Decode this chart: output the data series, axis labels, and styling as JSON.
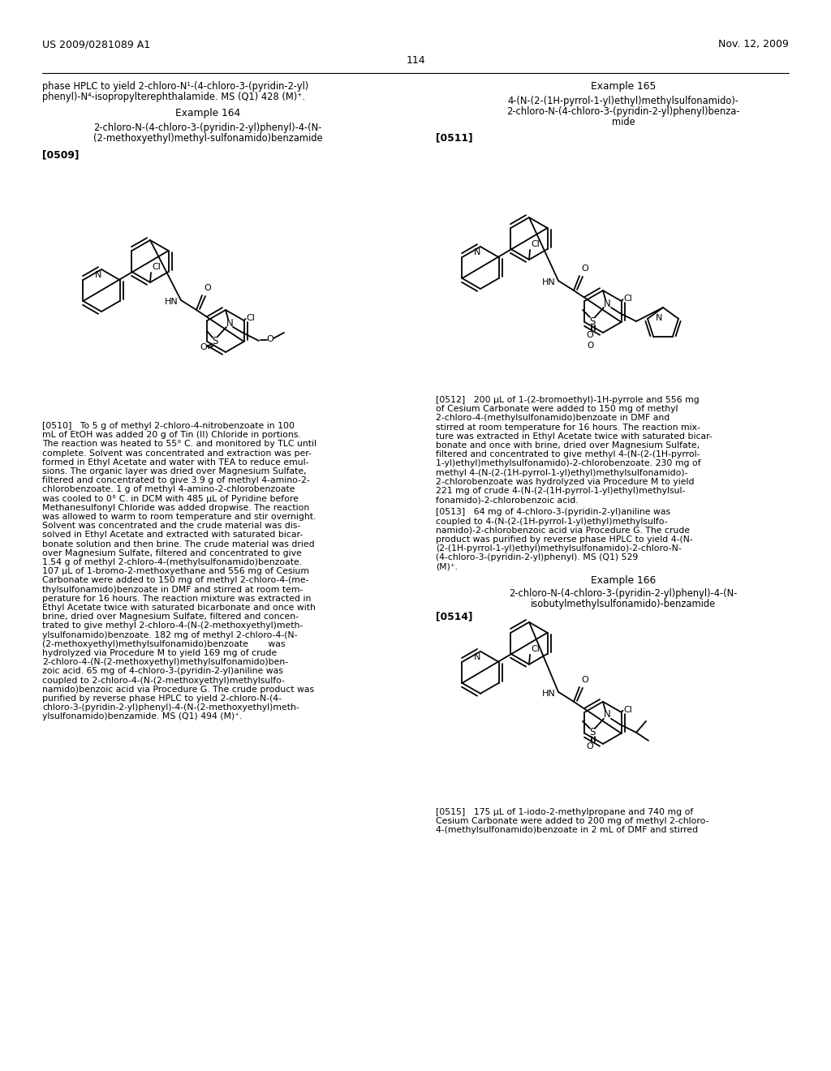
{
  "background_color": "#ffffff",
  "page_header_left": "US 2009/0281089 A1",
  "page_header_right": "Nov. 12, 2009",
  "page_number": "114",
  "left_intro_1": "phase HPLC to yield 2-chloro-N¹-(4-chloro-3-(pyridin-2-yl)",
  "left_intro_2": "phenyl)-N⁴-isopropylterephthalamide. MS (Q1) 428 (M)⁺.",
  "ex164_title": "Example 164",
  "ex164_name1": "2-chloro-N-(4-chloro-3-(pyridin-2-yl)phenyl)-4-(N-",
  "ex164_name2": "(2-methoxyethyl)methyl-sulfonamido)benzamide",
  "ex164_tag": "[0509]",
  "ex164_body": "[0510]   To 5 g of methyl 2-chloro-4-nitrobenzoate in 100\nmL of EtOH was added 20 g of Tin (II) Chloride in portions.\nThe reaction was heated to 55° C. and monitored by TLC until\ncomplete. Solvent was concentrated and extraction was per-\nformed in Ethyl Acetate and water with TEA to reduce emul-\nsions. The organic layer was dried over Magnesium Sulfate,\nfiltered and concentrated to give 3.9 g of methyl 4-amino-2-\nchlorobenzoate. 1 g of methyl 4-amino-2-chlorobenzoate\nwas cooled to 0° C. in DCM with 485 μL of Pyridine before\nMethanesulfonyl Chloride was added dropwise. The reaction\nwas allowed to warm to room temperature and stir overnight.\nSolvent was concentrated and the crude material was dis-\nsolved in Ethyl Acetate and extracted with saturated bicar-\nbonate solution and then brine. The crude material was dried\nover Magnesium Sulfate, filtered and concentrated to give\n1.54 g of methyl 2-chloro-4-(methylsulfonamido)benzoate.\n107 μL of 1-bromo-2-methoxyethane and 556 mg of Cesium\nCarbonate were added to 150 mg of methyl 2-chloro-4-(me-\nthylsulfonamido)benzoate in DMF and stirred at room tem-\nperature for 16 hours. The reaction mixture was extracted in\nEthyl Acetate twice with saturated bicarbonate and once with\nbrine, dried over Magnesium Sulfate, filtered and concen-\ntrated to give methyl 2-chloro-4-(N-(2-methoxyethyl)meth-\nylsulfonamido)benzoate. 182 mg of methyl 2-chloro-4-(N-\n(2-methoxyethyl)methylsulfonamido)benzoate       was\nhydrolyzed via Procedure M to yield 169 mg of crude\n2-chloro-4-(N-(2-methoxyethyl)methylsulfonamido)ben-\nzoic acid. 65 mg of 4-chloro-3-(pyridin-2-yl)aniline was\ncoupled to 2-chloro-4-(N-(2-methoxyethyl)methylsulfo-\nnamido)benzoic acid via Procedure G. The crude product was\npurified by reverse phase HPLC to yield 2-chloro-N-(4-\nchloro-3-(pyridin-2-yl)phenyl)-4-(N-(2-methoxyethyl)meth-\nylsulfonamido)benzamide. MS (Q1) 494 (M)⁺.",
  "ex165_title": "Example 165",
  "ex165_name1": "4-(N-(2-(1H-pyrrol-1-yl)ethyl)methylsulfonamido)-",
  "ex165_name2": "2-chloro-N-(4-chloro-3-(pyridin-2-yl)phenyl)benza-",
  "ex165_name3": "mide",
  "ex165_tag": "[0511]",
  "ex165_body1": "[0512]   200 μL of 1-(2-bromoethyl)-1H-pyrrole and 556 mg\nof Cesium Carbonate were added to 150 mg of methyl\n2-chloro-4-(methylsulfonamido)benzoate in DMF and\nstirred at room temperature for 16 hours. The reaction mix-\nture was extracted in Ethyl Acetate twice with saturated bicar-\nbonate and once with brine, dried over Magnesium Sulfate,\nfiltered and concentrated to give methyl 4-(N-(2-(1H-pyrrol-\n1-yl)ethyl)methylsulfonamido)-2-chlorobenzoate. 230 mg of\nmethyl 4-(N-(2-(1H-pyrrol-1-yl)ethyl)methylsulfonamido)-\n2-chlorobenzoate was hydrolyzed via Procedure M to yield\n221 mg of crude 4-(N-(2-(1H-pyrrol-1-yl)ethyl)methylsul-\nfonamido)-2-chlorobenzoic acid.",
  "ex165_body2": "[0513]   64 mg of 4-chloro-3-(pyridin-2-yl)aniline was\ncoupled to 4-(N-(2-(1H-pyrrol-1-yl)ethyl)methylsulfo-\nnamido)-2-chlorobenzoic acid via Procedure G. The crude\nproduct was purified by reverse phase HPLC to yield 4-(N-\n(2-(1H-pyrrol-1-yl)ethyl)methylsulfonamido)-2-chloro-N-\n(4-chloro-3-(pyridin-2-yl)phenyl). MS (Q1) 529\n(M)⁺.",
  "ex166_title": "Example 166",
  "ex166_name1": "2-chloro-N-(4-chloro-3-(pyridin-2-yl)phenyl)-4-(N-",
  "ex166_name2": "isobutylmethylsulfonamido)-benzamide",
  "ex166_tag": "[0514]",
  "ex166_body": "[0515]   175 μL of 1-iodo-2-methylpropane and 740 mg of\nCesium Carbonate were added to 200 mg of methyl 2-chloro-\n4-(methylsulfonamido)benzoate in 2 mL of DMF and stirred"
}
